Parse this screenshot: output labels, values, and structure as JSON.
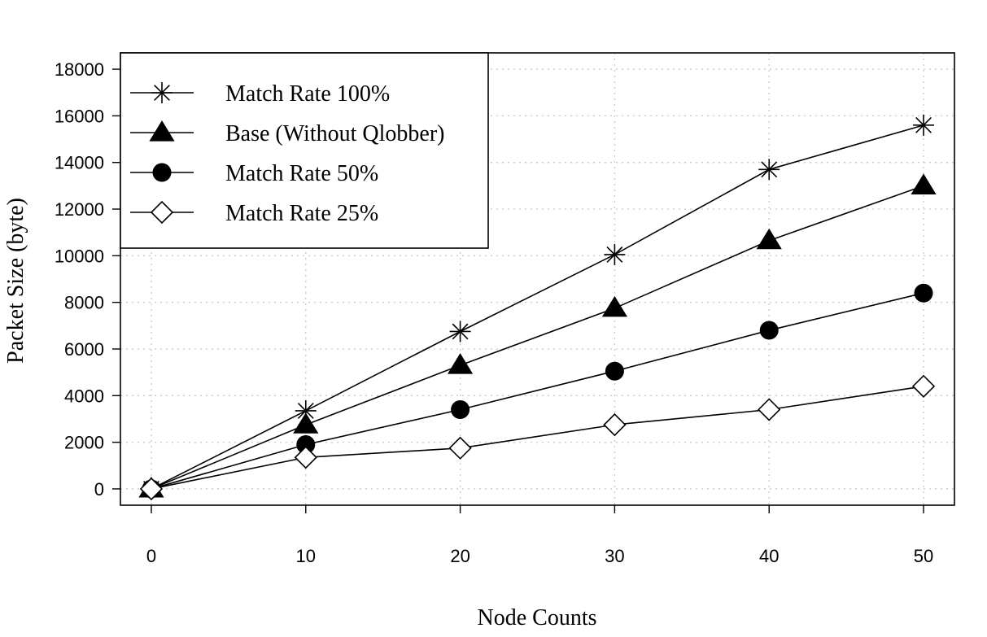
{
  "chart_data": {
    "type": "line",
    "title": "",
    "xlabel": "Node Counts",
    "ylabel": "Packet Size (byte)",
    "x": [
      0,
      10,
      20,
      30,
      40,
      50
    ],
    "xlim": [
      -2,
      52
    ],
    "ylim": [
      -700,
      18700
    ],
    "xticks": [
      0,
      10,
      20,
      30,
      40,
      50
    ],
    "yticks": [
      0,
      2000,
      4000,
      6000,
      8000,
      10000,
      12000,
      14000,
      16000,
      18000
    ],
    "grid": true,
    "legend_position": "top-left",
    "series": [
      {
        "name": "Match Rate 100%",
        "marker": "asterisk",
        "values": [
          0,
          3350,
          6750,
          10050,
          13700,
          15600
        ]
      },
      {
        "name": "Base (Without Qlobber)",
        "marker": "triangle",
        "values": [
          0,
          2750,
          5300,
          7750,
          10650,
          13000
        ]
      },
      {
        "name": "Match Rate 50%",
        "marker": "circle",
        "values": [
          0,
          1900,
          3400,
          5050,
          6800,
          8400
        ]
      },
      {
        "name": "Match Rate 25%",
        "marker": "diamond",
        "values": [
          0,
          1350,
          1750,
          2750,
          3400,
          4400
        ]
      }
    ]
  }
}
